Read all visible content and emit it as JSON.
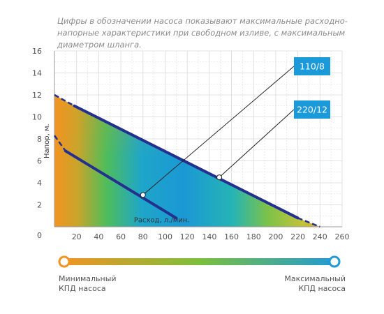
{
  "caption": "Цифры в обозначении насоса показывают максимальные расходно-напорные характеристики при свободном изливе, с максимальным диаметром шланга.",
  "chart_data": {
    "type": "line",
    "xlabel": "Расход, л./мин.",
    "ylabel": "Напор, м.",
    "xlim": [
      0,
      260
    ],
    "ylim": [
      0,
      16
    ],
    "x_ticks": [
      20,
      40,
      60,
      80,
      100,
      120,
      140,
      160,
      180,
      200,
      220,
      240,
      260
    ],
    "y_ticks": [
      0,
      2,
      4,
      6,
      8,
      10,
      12,
      14,
      16
    ],
    "grid": true,
    "series": [
      {
        "name": "110/8",
        "x": [
          10,
          110
        ],
        "y": [
          6.9,
          0.8
        ],
        "color": "#23308f",
        "dashed_extension": {
          "x": [
            0,
            10
          ],
          "y": [
            8.3,
            6.9
          ]
        }
      },
      {
        "name": "220/12",
        "x": [
          18,
          220
        ],
        "y": [
          11.0,
          0.8
        ],
        "color": "#23308f",
        "dashed_extension": {
          "x": [
            0,
            18,
            220,
            240
          ],
          "y": [
            12.0,
            11.0,
            0.8,
            0
          ]
        }
      }
    ],
    "markers": [
      {
        "series": "110/8",
        "x": 80,
        "y": 2.9
      },
      {
        "series": "220/12",
        "x": 149,
        "y": 4.5
      }
    ],
    "background": "efficiency gradient (orange = min, blue = max)"
  },
  "legend": {
    "min_label_line1": "Минимальный",
    "min_label_line2": "КПД насоса",
    "max_label_line1": "Максимальный",
    "max_label_line2": "КПД насоса",
    "min_color": "#f39322",
    "mid_color": "#7dbf3c",
    "max_color": "#1f9ad6"
  },
  "colors": {
    "line": "#23308f",
    "tag": "#1a9ad8",
    "grid": "#dadada"
  }
}
